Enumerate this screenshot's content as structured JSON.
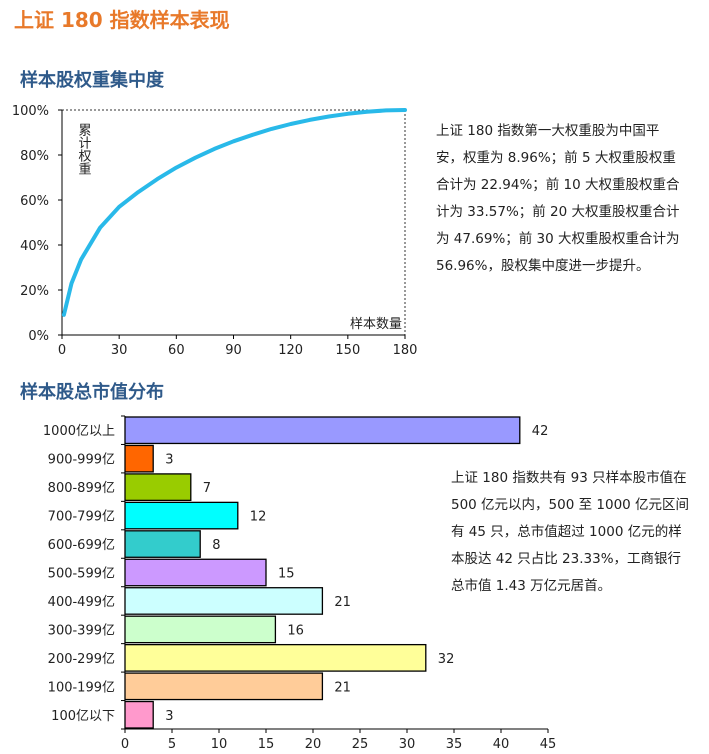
{
  "page_title": "上证 180 指数样本表现",
  "section1": {
    "heading": "样本股权重集中度",
    "description": "上证 180 指数第一大权重股为中国平安，权重为 8.96%；前 5 大权重股权重合计为 22.94%；前 10 大权重股权重合计为 33.57%；前 20 大权重股权重合计为 47.69%；前 30 大权重股权重合计为 56.96%，股权集中度进一步提升。",
    "description_lines": [
      "上证 180 指数第一大权重股为中国平",
      "安，权重为 8.96%；前 5 大权重股权重",
      "合计为 22.94%；前 10 大权重股权重合",
      "计为 33.57%；前 20 大权重股权重合计",
      "为 47.69%；前 30 大权重股权重合计为",
      "56.96%，股权集中度进一步提升。"
    ]
  },
  "section2": {
    "heading": "样本股总市值分布",
    "description_lines": [
      "上证 180 指数共有 93 只样本股市值在",
      "500 亿元以内，500 至 1000 亿元区间",
      "有 45 只，总市值超过 1000 亿元的样",
      "本股达 42 只占比 23.33%，工商银行",
      "总市值 1.43 万亿元居首。"
    ]
  },
  "chart_data": [
    {
      "type": "line",
      "title": "",
      "xlabel": "样本数量",
      "ylabel": "累计权重",
      "xlim": [
        0,
        180
      ],
      "ylim": [
        0,
        100
      ],
      "x_ticks": [
        "0",
        "30",
        "60",
        "90",
        "120",
        "150",
        "180"
      ],
      "y_ticks": [
        "0%",
        "20%",
        "40%",
        "60%",
        "80%",
        "100%"
      ],
      "grid": false,
      "series": [
        {
          "color": "#29b9e9",
          "x": [
            1,
            5,
            10,
            20,
            30,
            40,
            50,
            60,
            70,
            80,
            90,
            100,
            110,
            120,
            130,
            140,
            150,
            160,
            170,
            180
          ],
          "y": [
            8.96,
            22.94,
            33.57,
            47.69,
            56.96,
            63.5,
            69.3,
            74.4,
            78.8,
            82.7,
            86.1,
            89.0,
            91.6,
            93.8,
            95.6,
            97.1,
            98.3,
            99.2,
            99.8,
            100
          ]
        }
      ]
    },
    {
      "type": "bar",
      "orientation": "horizontal",
      "title": "",
      "categories": [
        "1000亿以上",
        "900-999亿",
        "800-899亿",
        "700-799亿",
        "600-699亿",
        "500-599亿",
        "400-499亿",
        "300-399亿",
        "200-299亿",
        "100-199亿",
        "100亿以下"
      ],
      "values": [
        42,
        3,
        7,
        12,
        8,
        15,
        21,
        16,
        32,
        21,
        3
      ],
      "colors": [
        "#9999ff",
        "#ff6600",
        "#99cc00",
        "#00ffff",
        "#33cccc",
        "#cc99ff",
        "#ccffff",
        "#ccffcc",
        "#ffff99",
        "#ffcc99",
        "#ff99cc"
      ],
      "xlim": [
        0,
        45
      ],
      "x_ticks": [
        "0",
        "5",
        "10",
        "15",
        "20",
        "25",
        "30",
        "35",
        "40",
        "45"
      ],
      "grid": false
    }
  ]
}
